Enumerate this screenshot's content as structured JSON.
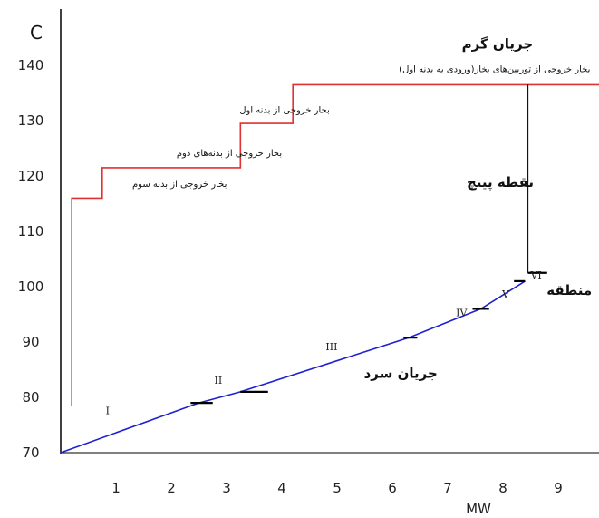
{
  "chart_data": {
    "type": "line",
    "ylabel": "C",
    "xlabel": "MW",
    "xlim": [
      0,
      9.75
    ],
    "ylim": [
      70,
      140
    ],
    "x_ticks": [
      "1",
      "2",
      "3",
      "4",
      "5",
      "6",
      "7",
      "8",
      "9"
    ],
    "y_ticks": [
      "70",
      "80",
      "90",
      "100",
      "110",
      "120",
      "130",
      "140"
    ],
    "series": [
      {
        "name": "جریان گرم",
        "color": "#e03030",
        "points": [
          [
            0.2,
            78.5
          ],
          [
            0.2,
            116
          ],
          [
            0.75,
            116
          ],
          [
            0.75,
            121.5
          ],
          [
            3.25,
            121.5
          ],
          [
            3.25,
            129.5
          ],
          [
            4.2,
            129.5
          ],
          [
            4.2,
            136.5
          ],
          [
            9.75,
            136.5
          ]
        ]
      },
      {
        "name": "جریان سرد",
        "color": "#2020d0",
        "points": [
          [
            0,
            70
          ],
          [
            2.5,
            79
          ],
          [
            3.25,
            81
          ],
          [
            6.3,
            90.8
          ],
          [
            7.6,
            96
          ],
          [
            8.4,
            101
          ]
        ]
      }
    ],
    "pinch_line": {
      "x": 8.45,
      "y_from": 102.5,
      "y_to": 136.5,
      "color": "#111111"
    },
    "step_markers": [
      {
        "x": [
          2.35,
          2.75
        ],
        "y": 79
      },
      {
        "x": [
          3.25,
          3.75
        ],
        "y": 81
      },
      {
        "x": [
          6.2,
          6.45
        ],
        "y": 90.8
      },
      {
        "x": [
          7.45,
          7.75
        ],
        "y": 96
      },
      {
        "x": [
          8.2,
          8.4
        ],
        "y": 101
      },
      {
        "x": [
          8.45,
          8.8
        ],
        "y": 102.5
      }
    ],
    "region_numerals": [
      {
        "label": "I",
        "x": 0.85,
        "y": 77
      },
      {
        "label": "II",
        "x": 2.85,
        "y": 82.5
      },
      {
        "label": "III",
        "x": 4.9,
        "y": 88.5
      },
      {
        "label": "IV",
        "x": 7.25,
        "y": 94.7
      },
      {
        "label": "V",
        "x": 8.05,
        "y": 98
      },
      {
        "label": "VI",
        "x": 8.6,
        "y": 101.5
      }
    ],
    "annotations": {
      "hot_stream": {
        "text": "جریان گرم",
        "x": 7.9,
        "y": 143
      },
      "cold_stream": {
        "text": "جریان سرد",
        "x": 6.15,
        "y": 83.5
      },
      "pinch_point": {
        "text": "نقطه پینچ",
        "x": 7.95,
        "y": 118
      },
      "region": {
        "text": "منطقه",
        "x": 9.2,
        "y": 98.5
      },
      "hp_turbine_exhaust": {
        "text": "بخار خروجی از توربین‌های بخار(ورودی به بدنه اول)",
        "x": 7.85,
        "y": 138.8
      },
      "first_body_exhaust": {
        "text": "بخار خروجی از بدنه اول",
        "x": 4.05,
        "y": 131.4
      },
      "second_body_exhaust": {
        "text": "بخار خروجی از بدنه‌های دوم",
        "x": 3.05,
        "y": 123.6
      },
      "third_body_exhaust": {
        "text": "بخار خروجی از بدنه سوم",
        "x": 2.15,
        "y": 118
      }
    }
  }
}
